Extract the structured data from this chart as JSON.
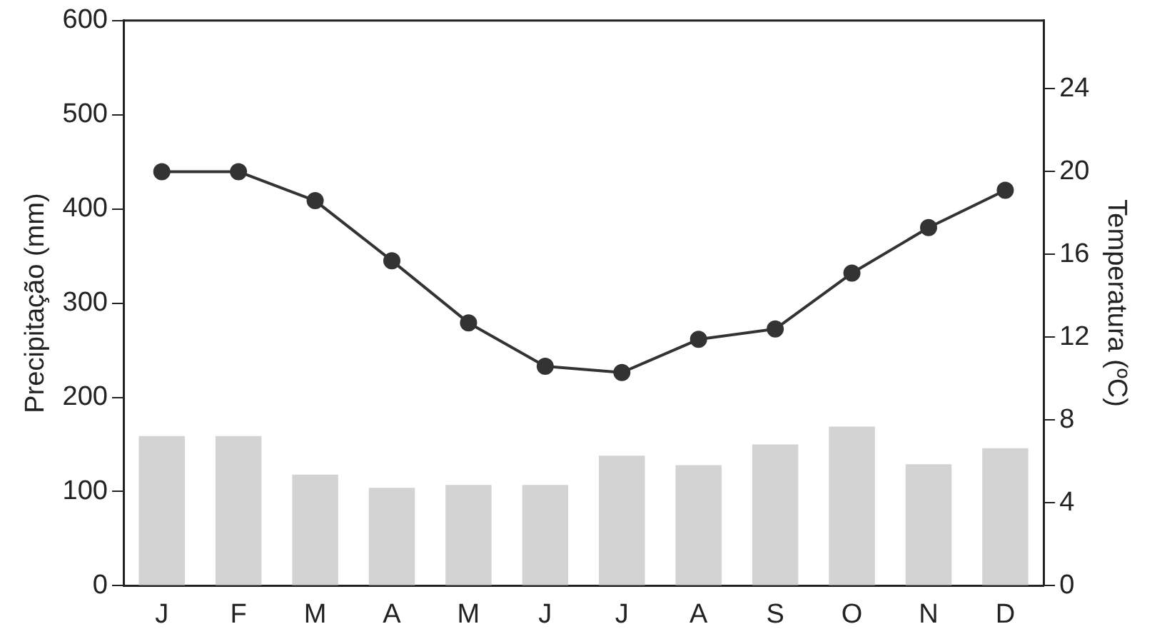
{
  "chart_data": {
    "type": "bar",
    "ylabel": "Precipitação (mm)",
    "y2label": "Temperatura (ºC)",
    "categories": [
      "J",
      "F",
      "M",
      "A",
      "M",
      "J",
      "J",
      "A",
      "S",
      "O",
      "N",
      "D"
    ],
    "series": [
      {
        "color": "#d3d3d3",
        "values": [
          159,
          159,
          118,
          104,
          107,
          107,
          138,
          128,
          150,
          169,
          129,
          146
        ]
      },
      {
        "type": "line",
        "axis": "y2",
        "color": "#333333",
        "marker": "circle",
        "values": [
          20.0,
          20.0,
          18.6,
          15.7,
          12.7,
          10.6,
          10.3,
          11.9,
          12.4,
          15.1,
          17.3,
          19.1
        ]
      }
    ],
    "ylim": [
      0,
      600
    ],
    "yticks": [
      0,
      100,
      200,
      300,
      400,
      500,
      600
    ],
    "y2lim": [
      0,
      27.3
    ],
    "y2ticks": [
      0,
      4,
      8,
      12,
      16,
      20,
      24
    ],
    "grid": false,
    "legend": false
  }
}
